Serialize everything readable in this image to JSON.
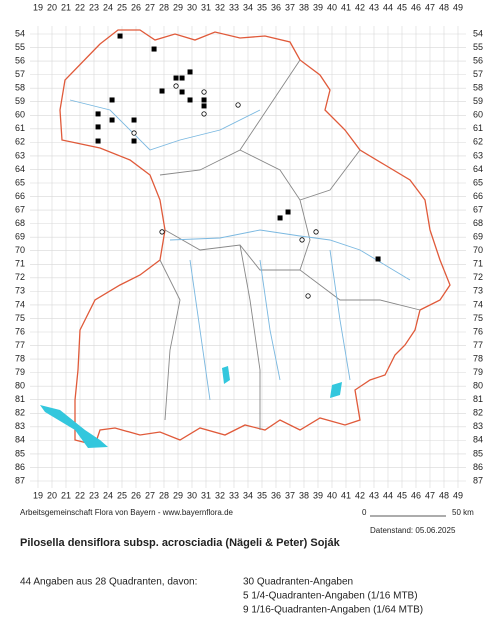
{
  "map": {
    "col_labels": [
      19,
      20,
      21,
      22,
      23,
      24,
      25,
      26,
      27,
      28,
      29,
      30,
      31,
      32,
      33,
      34,
      35,
      36,
      37,
      38,
      39,
      40,
      41,
      42,
      43,
      44,
      45,
      46,
      47,
      48,
      49
    ],
    "row_labels": [
      54,
      55,
      56,
      57,
      58,
      59,
      60,
      61,
      62,
      63,
      64,
      65,
      66,
      67,
      68,
      69,
      70,
      71,
      72,
      73,
      74,
      75,
      76,
      77,
      78,
      79,
      80,
      81,
      82,
      83,
      84,
      85,
      86,
      87
    ],
    "records": [
      {
        "kind": "square",
        "col": 24.86,
        "row": 54.15
      },
      {
        "kind": "square",
        "col": 27.29,
        "row": 55.11
      },
      {
        "kind": "square",
        "col": 29.86,
        "row": 56.8
      },
      {
        "kind": "square",
        "col": 28.86,
        "row": 57.25
      },
      {
        "kind": "square",
        "col": 29.29,
        "row": 57.25
      },
      {
        "kind": "square",
        "col": 27.86,
        "row": 58.21
      },
      {
        "kind": "square",
        "col": 29.29,
        "row": 58.28
      },
      {
        "kind": "square",
        "col": 29.86,
        "row": 58.87
      },
      {
        "kind": "square",
        "col": 30.86,
        "row": 58.87
      },
      {
        "kind": "square",
        "col": 30.86,
        "row": 59.31
      },
      {
        "kind": "square",
        "col": 24.29,
        "row": 58.87
      },
      {
        "kind": "square",
        "col": 23.29,
        "row": 59.9
      },
      {
        "kind": "square",
        "col": 23.29,
        "row": 60.86
      },
      {
        "kind": "square",
        "col": 24.29,
        "row": 60.35
      },
      {
        "kind": "square",
        "col": 25.86,
        "row": 60.35
      },
      {
        "kind": "square",
        "col": 23.29,
        "row": 61.9
      },
      {
        "kind": "square",
        "col": 25.86,
        "row": 61.9
      },
      {
        "kind": "square",
        "col": 36.86,
        "row": 67.14
      },
      {
        "kind": "square",
        "col": 36.29,
        "row": 67.58
      },
      {
        "kind": "square",
        "col": 43.29,
        "row": 70.61
      },
      {
        "kind": "circle",
        "col": 28.86,
        "row": 57.84
      },
      {
        "kind": "circle",
        "col": 30.86,
        "row": 58.28
      },
      {
        "kind": "circle",
        "col": 33.29,
        "row": 59.24
      },
      {
        "kind": "circle",
        "col": 30.86,
        "row": 59.9
      },
      {
        "kind": "circle",
        "col": 25.86,
        "row": 61.31
      },
      {
        "kind": "circle",
        "col": 27.86,
        "row": 68.61
      },
      {
        "kind": "circle",
        "col": 38.86,
        "row": 68.61
      },
      {
        "kind": "circle",
        "col": 37.86,
        "row": 69.2
      },
      {
        "kind": "circle",
        "col": 38.29,
        "row": 73.34
      }
    ]
  },
  "credit": "Arbeitsgemeinschaft Flora von Bayern - www.bayernflora.de",
  "scale": {
    "start": "0",
    "end": "50 km"
  },
  "date": "Datenstand: 05.06.2025",
  "title": "Pilosella densiflora subsp. acrosciadia (Nägeli & Peter) Soják",
  "summary": "44 Angaben aus 28 Quadranten, davon:",
  "breakdown": [
    "30 Quadranten-Angaben",
    "5 1/4-Quadranten-Angaben (1/16 MTB)",
    "9 1/16-Quadranten-Angaben (1/64 MTB)"
  ]
}
